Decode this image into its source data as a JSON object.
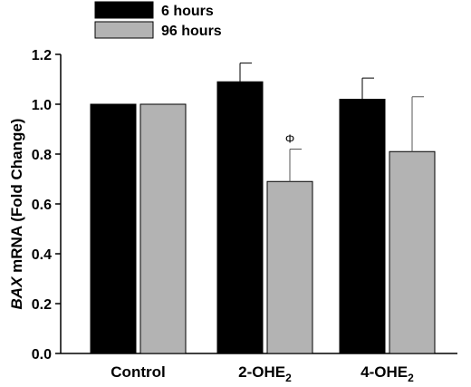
{
  "chart_data": {
    "type": "bar",
    "categories": [
      {
        "main": "Control",
        "sub": ""
      },
      {
        "main": "2-OHE",
        "sub": "2"
      },
      {
        "main": "4-OHE",
        "sub": "2"
      }
    ],
    "series": [
      {
        "name": "6 hours",
        "color": "#000000",
        "values": [
          1.0,
          1.09,
          1.02
        ],
        "errors": [
          0,
          0.075,
          0.085
        ]
      },
      {
        "name": "96 hours",
        "color": "#b3b3b3",
        "values": [
          1.0,
          0.69,
          0.81
        ],
        "errors": [
          0,
          0.13,
          0.22
        ]
      }
    ],
    "ylabel": {
      "gene": "BAX",
      "rest": " mRNA (Fold Change)"
    },
    "ylim": [
      0,
      1.2
    ],
    "yticks": [
      "0.0",
      "0.2",
      "0.4",
      "0.6",
      "0.8",
      "1.0",
      "1.2"
    ],
    "grid": false,
    "legend_position": "top-left",
    "annotations": [
      {
        "text": "Φ",
        "category": 1,
        "series": 1
      }
    ]
  }
}
